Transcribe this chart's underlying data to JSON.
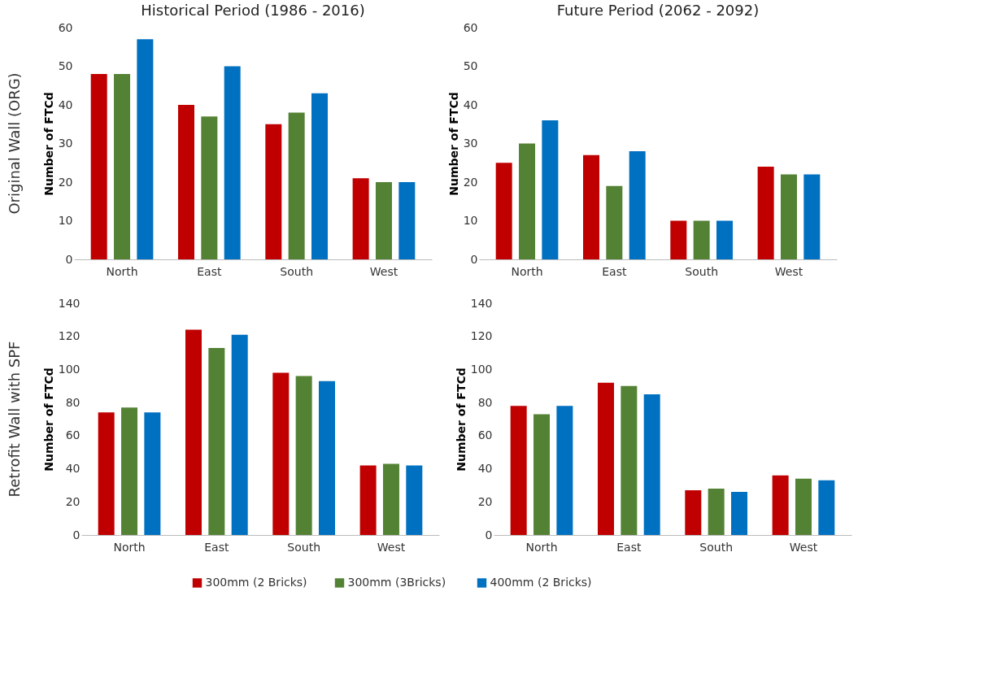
{
  "chart_data": [
    {
      "type": "bar",
      "title": "Historical Period (1986 - 2016)",
      "annotations": [
        "Original Wall (ORG)"
      ],
      "ylabel": "Number of FTCd",
      "categories": [
        "North",
        "East",
        "South",
        "West"
      ],
      "ylim": [
        0,
        60
      ],
      "yticks": [
        0,
        10,
        20,
        30,
        40,
        50,
        60
      ],
      "grid": false,
      "legend": "bottom",
      "series": [
        {
          "name": "300mm (2 Bricks)",
          "color": "#c00000",
          "values": [
            48,
            40,
            35,
            21
          ]
        },
        {
          "name": "300mm (3Bricks)",
          "color": "#548235",
          "values": [
            48,
            37,
            38,
            20
          ]
        },
        {
          "name": "400mm (2 Bricks)",
          "color": "#0070c0",
          "values": [
            57,
            50,
            43,
            20
          ]
        }
      ]
    },
    {
      "type": "bar",
      "title": "Future Period (2062 - 2092)",
      "ylabel": "Number of FTCd",
      "categories": [
        "North",
        "East",
        "South",
        "West"
      ],
      "ylim": [
        0,
        60
      ],
      "yticks": [
        0,
        10,
        20,
        30,
        40,
        50,
        60
      ],
      "grid": false,
      "legend": "bottom",
      "series": [
        {
          "name": "300mm (2 Bricks)",
          "color": "#c00000",
          "values": [
            25,
            27,
            10,
            24
          ]
        },
        {
          "name": "300mm (3Bricks)",
          "color": "#548235",
          "values": [
            30,
            19,
            10,
            22
          ]
        },
        {
          "name": "400mm (2 Bricks)",
          "color": "#0070c0",
          "values": [
            36,
            28,
            10,
            22
          ]
        }
      ]
    },
    {
      "type": "bar",
      "annotations": [
        "Retrofit Wall with SPF"
      ],
      "ylabel": "Number of FTCd",
      "categories": [
        "North",
        "East",
        "South",
        "West"
      ],
      "ylim": [
        0,
        140
      ],
      "yticks": [
        0,
        20,
        40,
        60,
        80,
        100,
        120,
        140
      ],
      "grid": false,
      "legend": "bottom",
      "series": [
        {
          "name": "300mm (2 Bricks)",
          "color": "#c00000",
          "values": [
            74,
            124,
            98,
            42
          ]
        },
        {
          "name": "300mm (3Bricks)",
          "color": "#548235",
          "values": [
            77,
            113,
            96,
            43
          ]
        },
        {
          "name": "400mm (2 Bricks)",
          "color": "#0070c0",
          "values": [
            74,
            121,
            93,
            42
          ]
        }
      ]
    },
    {
      "type": "bar",
      "ylabel": "Number of FTCd",
      "categories": [
        "North",
        "East",
        "South",
        "West"
      ],
      "ylim": [
        0,
        140
      ],
      "yticks": [
        0,
        20,
        40,
        60,
        80,
        100,
        120,
        140
      ],
      "grid": false,
      "legend": "bottom",
      "series": [
        {
          "name": "300mm (2 Bricks)",
          "color": "#c00000",
          "values": [
            78,
            92,
            27,
            36
          ]
        },
        {
          "name": "300mm (3Bricks)",
          "color": "#548235",
          "values": [
            73,
            90,
            28,
            34
          ]
        },
        {
          "name": "400mm (2 Bricks)",
          "color": "#0070c0",
          "values": [
            78,
            85,
            26,
            33
          ]
        }
      ]
    }
  ]
}
